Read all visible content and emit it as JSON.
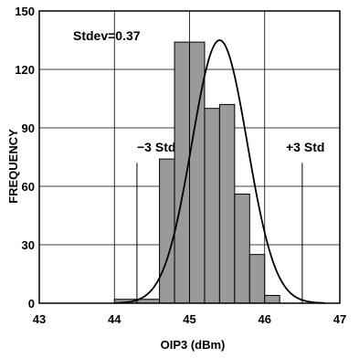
{
  "chart_data": {
    "type": "bar",
    "title": "",
    "xlabel": "OIP3 (dBm)",
    "ylabel": "FREQUENCY",
    "xlim": [
      43,
      47
    ],
    "ylim": [
      0,
      150
    ],
    "x_ticks": [
      "43",
      "44",
      "45",
      "46",
      "47"
    ],
    "y_ticks": [
      "0",
      "30",
      "60",
      "90",
      "120",
      "150"
    ],
    "grid": true,
    "bins": [
      {
        "x0": 44.0,
        "x1": 44.3,
        "value": 2
      },
      {
        "x0": 44.3,
        "x1": 44.6,
        "value": 2
      },
      {
        "x0": 44.6,
        "x1": 44.8,
        "value": 74
      },
      {
        "x0": 44.8,
        "x1": 45.0,
        "value": 134
      },
      {
        "x0": 45.0,
        "x1": 45.2,
        "value": 134
      },
      {
        "x0": 45.2,
        "x1": 45.4,
        "value": 100
      },
      {
        "x0": 45.4,
        "x1": 45.6,
        "value": 102
      },
      {
        "x0": 45.6,
        "x1": 45.8,
        "value": 56
      },
      {
        "x0": 45.8,
        "x1": 46.0,
        "value": 25
      },
      {
        "x0": 46.0,
        "x1": 46.2,
        "value": 4
      }
    ],
    "normal_curve": {
      "mean": 45.4,
      "stdev": 0.37,
      "peak": 135
    },
    "std_markers": [
      {
        "label": "−3 Std",
        "x": 44.3,
        "y_top": 72
      },
      {
        "label": "+3 Std",
        "x": 46.5,
        "y_top": 72
      }
    ],
    "annotation": "Stdev=0.37"
  }
}
